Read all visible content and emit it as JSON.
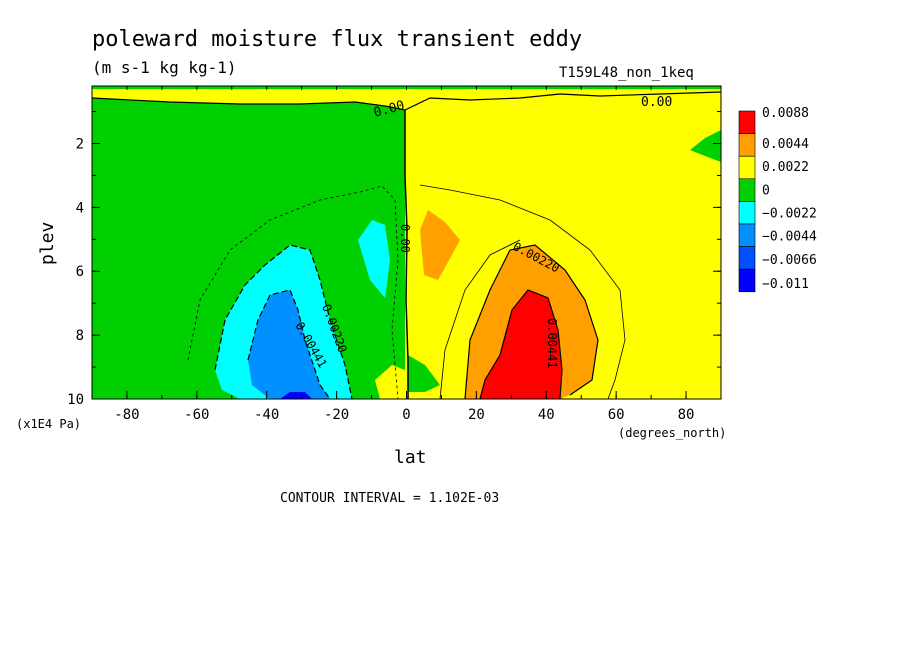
{
  "chart_data": {
    "type": "heatmap",
    "title": "poleward moisture flux transient eddy",
    "units": "(m s-1 kg kg-1)",
    "experiment": "T159L48_non_1keq",
    "xlabel": "lat",
    "x_units": "(degrees_north)",
    "ylabel": "plev",
    "y_units": "(x1E4 Pa)",
    "xlim": [
      -90,
      90
    ],
    "ylim": [
      10,
      0.2
    ],
    "x_ticks": [
      "-80",
      "-60",
      "-40",
      "-20",
      "0",
      "20",
      "40",
      "60",
      "80"
    ],
    "y_ticks": [
      "2",
      "4",
      "6",
      "8",
      "10"
    ],
    "contour_interval": "CONTOUR INTERVAL = 1.102E-03",
    "contour_labels": [
      "0.00",
      "0.00",
      "0.00",
      "0.00220",
      "0.00441",
      "0.00220",
      "0.00441"
    ],
    "legend": {
      "placement": "right",
      "levels": [
        "0.0088",
        "0.0044",
        "0.0022",
        "0",
        "−0.0022",
        "−0.0044",
        "−0.0066",
        "−0.011"
      ],
      "colors": [
        "#ff0000",
        "#ffa000",
        "#ffff00",
        "#00d000",
        "#00ffff",
        "#0090ff",
        "#0050ff",
        "#0000ff"
      ]
    },
    "regions": [
      {
        "name": "negative-band-polar-sh",
        "color": "#00d000"
      },
      {
        "name": "positive-band-nh",
        "color": "#ffff00"
      },
      {
        "name": "sh-eddy-core",
        "color": "#0090ff"
      },
      {
        "name": "nh-eddy-core",
        "color": "#ff0000"
      }
    ]
  }
}
